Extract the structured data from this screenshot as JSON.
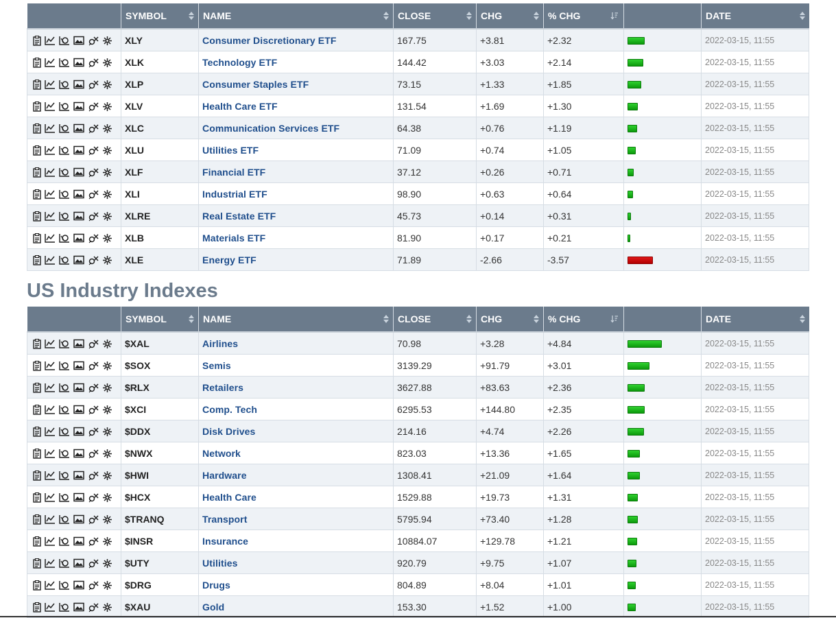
{
  "headers": {
    "symbol": "SYMBOL",
    "name": "NAME",
    "close": "CLOSE",
    "chg": "CHG",
    "pct_chg": "% CHG",
    "date": "DATE"
  },
  "colors": {
    "header_bg": "#6b7b8c",
    "name_link": "#1f4e8c",
    "gain_bar": "#19b519",
    "loss_bar": "#d00000"
  },
  "row_icons": [
    "summary-icon",
    "chart-icon",
    "perfchart-icon",
    "image-chart-icon",
    "seasonality-icon",
    "symbol-tools-icon"
  ],
  "bar_scale_max_pct": 4.84,
  "sectors": {
    "rows": [
      {
        "symbol": "XLY",
        "name": "Consumer Discretionary ETF",
        "close": "167.75",
        "chg": "+3.81",
        "pct": "+2.32",
        "pct_value": 2.32,
        "date": "2022-03-15, 11:55"
      },
      {
        "symbol": "XLK",
        "name": "Technology ETF",
        "close": "144.42",
        "chg": "+3.03",
        "pct": "+2.14",
        "pct_value": 2.14,
        "date": "2022-03-15, 11:55"
      },
      {
        "symbol": "XLP",
        "name": "Consumer Staples ETF",
        "close": "73.15",
        "chg": "+1.33",
        "pct": "+1.85",
        "pct_value": 1.85,
        "date": "2022-03-15, 11:55"
      },
      {
        "symbol": "XLV",
        "name": "Health Care ETF",
        "close": "131.54",
        "chg": "+1.69",
        "pct": "+1.30",
        "pct_value": 1.3,
        "date": "2022-03-15, 11:55"
      },
      {
        "symbol": "XLC",
        "name": "Communication Services ETF",
        "close": "64.38",
        "chg": "+0.76",
        "pct": "+1.19",
        "pct_value": 1.19,
        "date": "2022-03-15, 11:55"
      },
      {
        "symbol": "XLU",
        "name": "Utilities ETF",
        "close": "71.09",
        "chg": "+0.74",
        "pct": "+1.05",
        "pct_value": 1.05,
        "date": "2022-03-15, 11:55"
      },
      {
        "symbol": "XLF",
        "name": "Financial ETF",
        "close": "37.12",
        "chg": "+0.26",
        "pct": "+0.71",
        "pct_value": 0.71,
        "date": "2022-03-15, 11:55"
      },
      {
        "symbol": "XLI",
        "name": "Industrial ETF",
        "close": "98.90",
        "chg": "+0.63",
        "pct": "+0.64",
        "pct_value": 0.64,
        "date": "2022-03-15, 11:55"
      },
      {
        "symbol": "XLRE",
        "name": "Real Estate ETF",
        "close": "45.73",
        "chg": "+0.14",
        "pct": "+0.31",
        "pct_value": 0.31,
        "date": "2022-03-15, 11:55"
      },
      {
        "symbol": "XLB",
        "name": "Materials ETF",
        "close": "81.90",
        "chg": "+0.17",
        "pct": "+0.21",
        "pct_value": 0.21,
        "date": "2022-03-15, 11:55"
      },
      {
        "symbol": "XLE",
        "name": "Energy ETF",
        "close": "71.89",
        "chg": "-2.66",
        "pct": "-3.57",
        "pct_value": -3.57,
        "date": "2022-03-15, 11:55"
      }
    ]
  },
  "industries": {
    "title": "US Industry Indexes",
    "rows": [
      {
        "symbol": "$XAL",
        "name": "Airlines",
        "close": "70.98",
        "chg": "+3.28",
        "pct": "+4.84",
        "pct_value": 4.84,
        "date": "2022-03-15, 11:55"
      },
      {
        "symbol": "$SOX",
        "name": "Semis",
        "close": "3139.29",
        "chg": "+91.79",
        "pct": "+3.01",
        "pct_value": 3.01,
        "date": "2022-03-15, 11:55"
      },
      {
        "symbol": "$RLX",
        "name": "Retailers",
        "close": "3627.88",
        "chg": "+83.63",
        "pct": "+2.36",
        "pct_value": 2.36,
        "date": "2022-03-15, 11:55"
      },
      {
        "symbol": "$XCI",
        "name": "Comp. Tech",
        "close": "6295.53",
        "chg": "+144.80",
        "pct": "+2.35",
        "pct_value": 2.35,
        "date": "2022-03-15, 11:55"
      },
      {
        "symbol": "$DDX",
        "name": "Disk Drives",
        "close": "214.16",
        "chg": "+4.74",
        "pct": "+2.26",
        "pct_value": 2.26,
        "date": "2022-03-15, 11:55"
      },
      {
        "symbol": "$NWX",
        "name": "Network",
        "close": "823.03",
        "chg": "+13.36",
        "pct": "+1.65",
        "pct_value": 1.65,
        "date": "2022-03-15, 11:55"
      },
      {
        "symbol": "$HWI",
        "name": "Hardware",
        "close": "1308.41",
        "chg": "+21.09",
        "pct": "+1.64",
        "pct_value": 1.64,
        "date": "2022-03-15, 11:55"
      },
      {
        "symbol": "$HCX",
        "name": "Health Care",
        "close": "1529.88",
        "chg": "+19.73",
        "pct": "+1.31",
        "pct_value": 1.31,
        "date": "2022-03-15, 11:55"
      },
      {
        "symbol": "$TRANQ",
        "name": "Transport",
        "close": "5795.94",
        "chg": "+73.40",
        "pct": "+1.28",
        "pct_value": 1.28,
        "date": "2022-03-15, 11:55"
      },
      {
        "symbol": "$INSR",
        "name": "Insurance",
        "close": "10884.07",
        "chg": "+129.78",
        "pct": "+1.21",
        "pct_value": 1.21,
        "date": "2022-03-15, 11:55"
      },
      {
        "symbol": "$UTY",
        "name": "Utilities",
        "close": "920.79",
        "chg": "+9.75",
        "pct": "+1.07",
        "pct_value": 1.07,
        "date": "2022-03-15, 11:55"
      },
      {
        "symbol": "$DRG",
        "name": "Drugs",
        "close": "804.89",
        "chg": "+8.04",
        "pct": "+1.01",
        "pct_value": 1.01,
        "date": "2022-03-15, 11:55"
      },
      {
        "symbol": "$XAU",
        "name": "Gold",
        "close": "153.30",
        "chg": "+1.52",
        "pct": "+1.00",
        "pct_value": 1.0,
        "date": "2022-03-15, 11:55"
      }
    ]
  }
}
